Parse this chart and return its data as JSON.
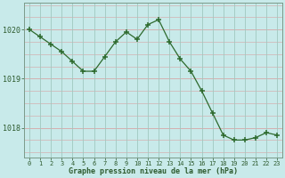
{
  "x": [
    0,
    1,
    2,
    3,
    4,
    5,
    6,
    7,
    8,
    9,
    10,
    11,
    12,
    13,
    14,
    15,
    16,
    17,
    18,
    19,
    20,
    21,
    22,
    23
  ],
  "y": [
    1020.0,
    1019.85,
    1019.7,
    1019.55,
    1019.35,
    1019.15,
    1019.15,
    1019.45,
    1019.75,
    1019.95,
    1019.8,
    1020.1,
    1020.2,
    1019.75,
    1019.4,
    1019.15,
    1018.75,
    1018.3,
    1017.85,
    1017.75,
    1017.75,
    1017.8,
    1017.9,
    1017.85
  ],
  "line_color": "#2d6a2d",
  "marker": "+",
  "bg_color": "#c8eaea",
  "grid_color_h": "#d4b0b0",
  "grid_color_v": "#a0c8c0",
  "xlabel": "Graphe pression niveau de la mer (hPa)",
  "xlabel_color": "#2d5a2d",
  "tick_color": "#2d5a2d",
  "axis_color": "#7a9a8a",
  "ylim": [
    1017.4,
    1020.55
  ],
  "yticks": [
    1018,
    1019,
    1020
  ],
  "xticks": [
    0,
    1,
    2,
    3,
    4,
    5,
    6,
    7,
    8,
    9,
    10,
    11,
    12,
    13,
    14,
    15,
    16,
    17,
    18,
    19,
    20,
    21,
    22,
    23
  ]
}
